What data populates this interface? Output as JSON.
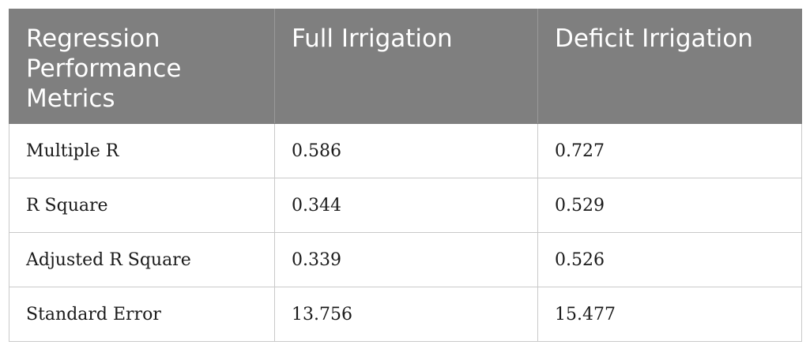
{
  "table": {
    "headers": [
      "Regression Performance Metrics",
      "Full Irrigation",
      "Deficit Irrigation"
    ],
    "rows": [
      [
        "Multiple R",
        "0.586",
        "0.727"
      ],
      [
        "R Square",
        "0.344",
        "0.529"
      ],
      [
        "Adjusted R Square",
        "0.339",
        "0.526"
      ],
      [
        "Standard Error",
        "13.756",
        "15.477"
      ]
    ]
  },
  "colors": {
    "header_background": "#7f7f7f",
    "header_text": "#ffffff",
    "body_text": "#1a1a1a",
    "cell_border": "#c9c9c9"
  }
}
